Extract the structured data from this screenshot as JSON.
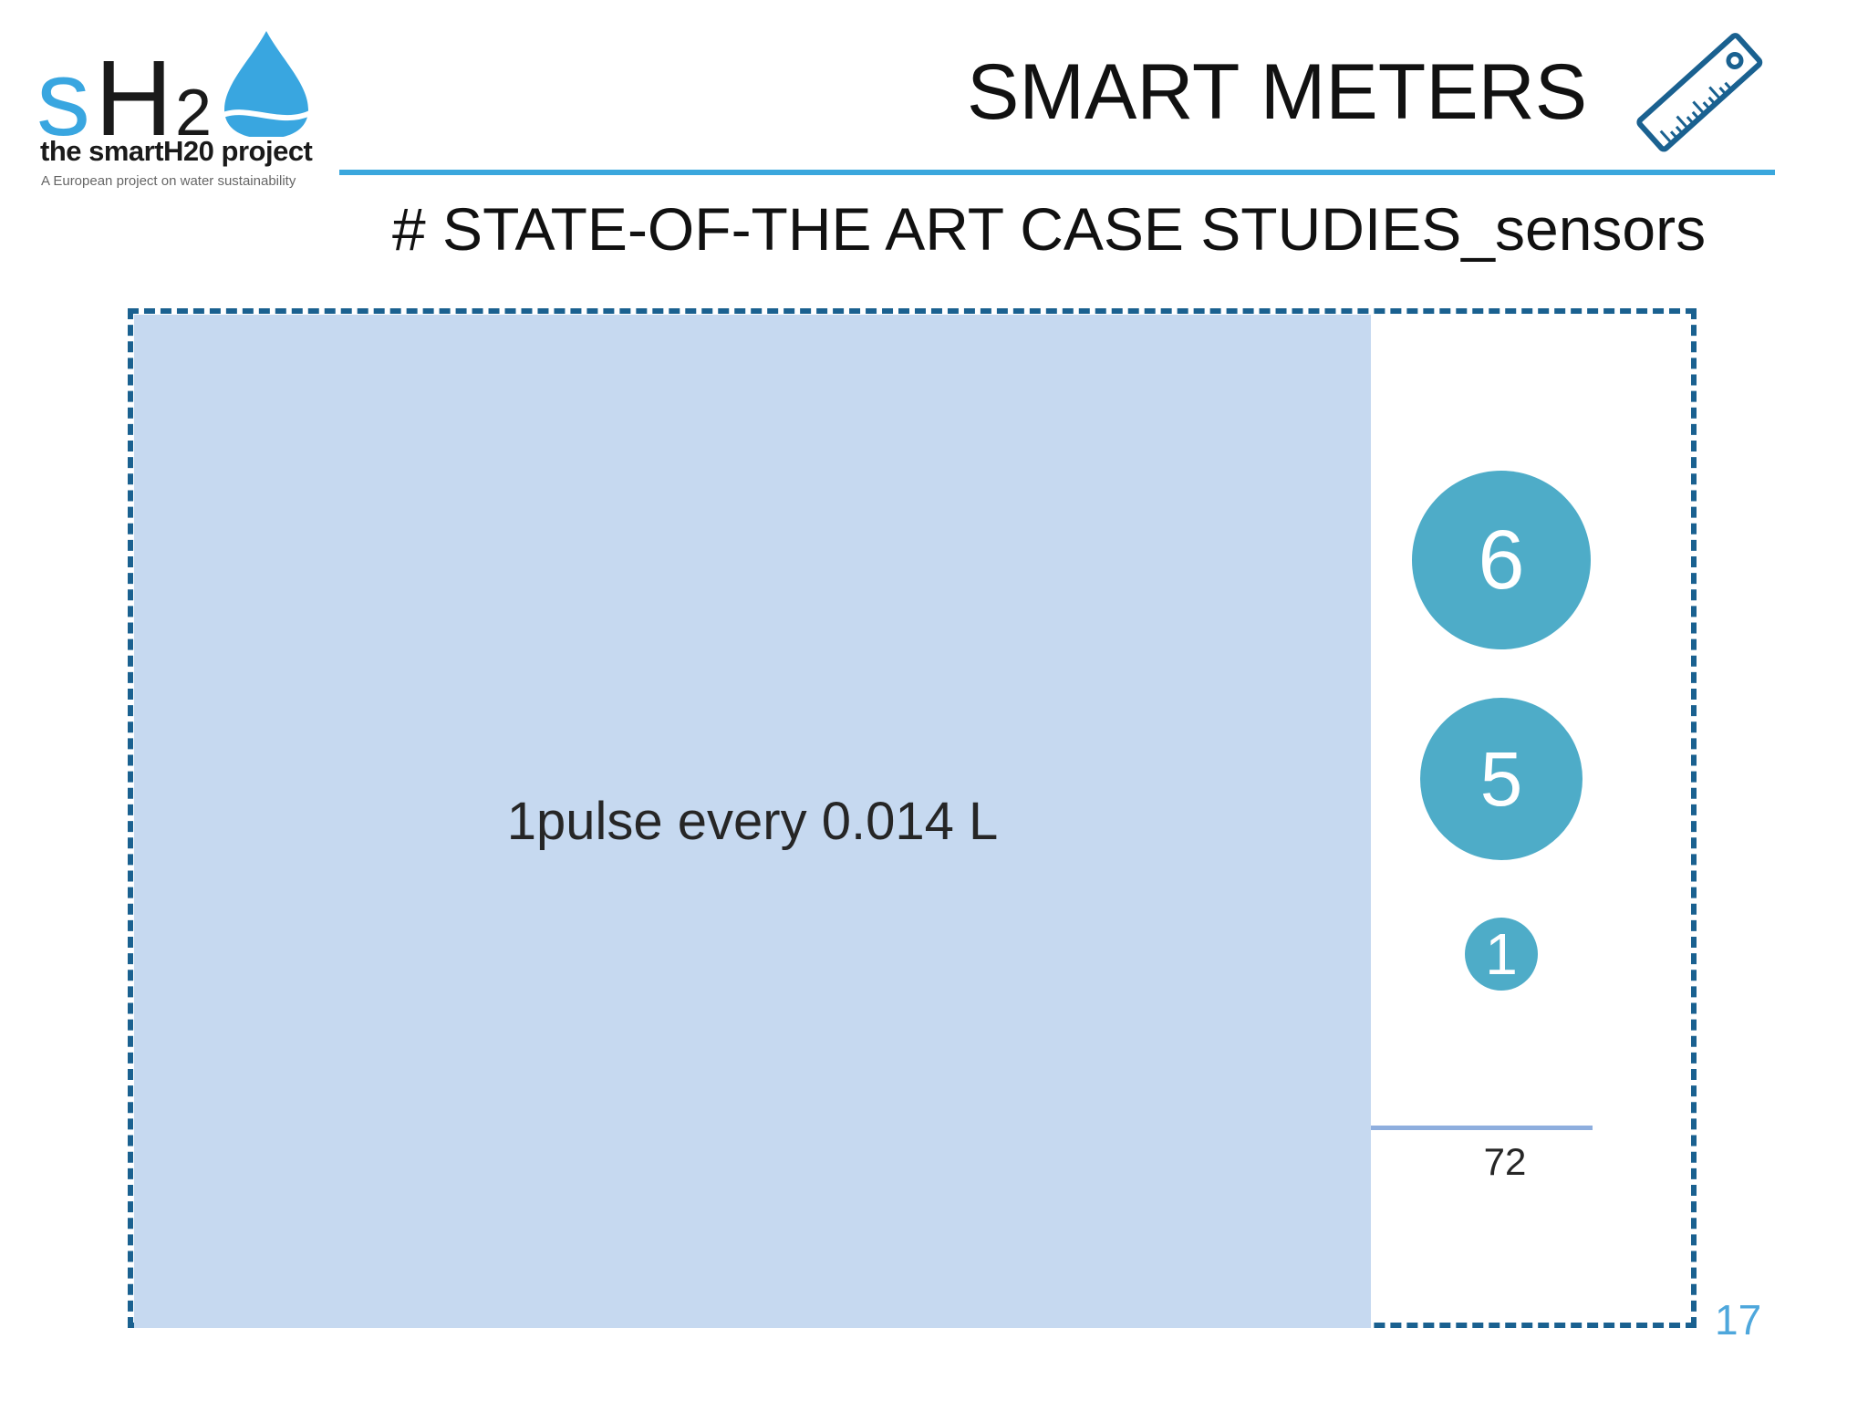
{
  "logo": {
    "mark_s": "s",
    "mark_h": "H",
    "mark_sub": "2",
    "name": "the smartH20 project",
    "tagline": "A European project on water sustainability"
  },
  "header": {
    "title": "SMART METERS",
    "icon": "ruler-icon"
  },
  "subtitle": "# STATE-OF-THE ART CASE STUDIES_sensors",
  "callout": {
    "text": "1pulse every 0.014 L"
  },
  "bubbles": [
    {
      "value": "6"
    },
    {
      "value": "5"
    },
    {
      "value": "1"
    }
  ],
  "axis_label": "72",
  "page_number": "17",
  "colors": {
    "accent_blue": "#3aa7dd",
    "panel_border": "#1a6190",
    "callout_fill": "#c6d9f0",
    "bubble_fill": "#4eacc8",
    "axis_line": "#8eaede",
    "page_number": "#4ea7dc"
  }
}
